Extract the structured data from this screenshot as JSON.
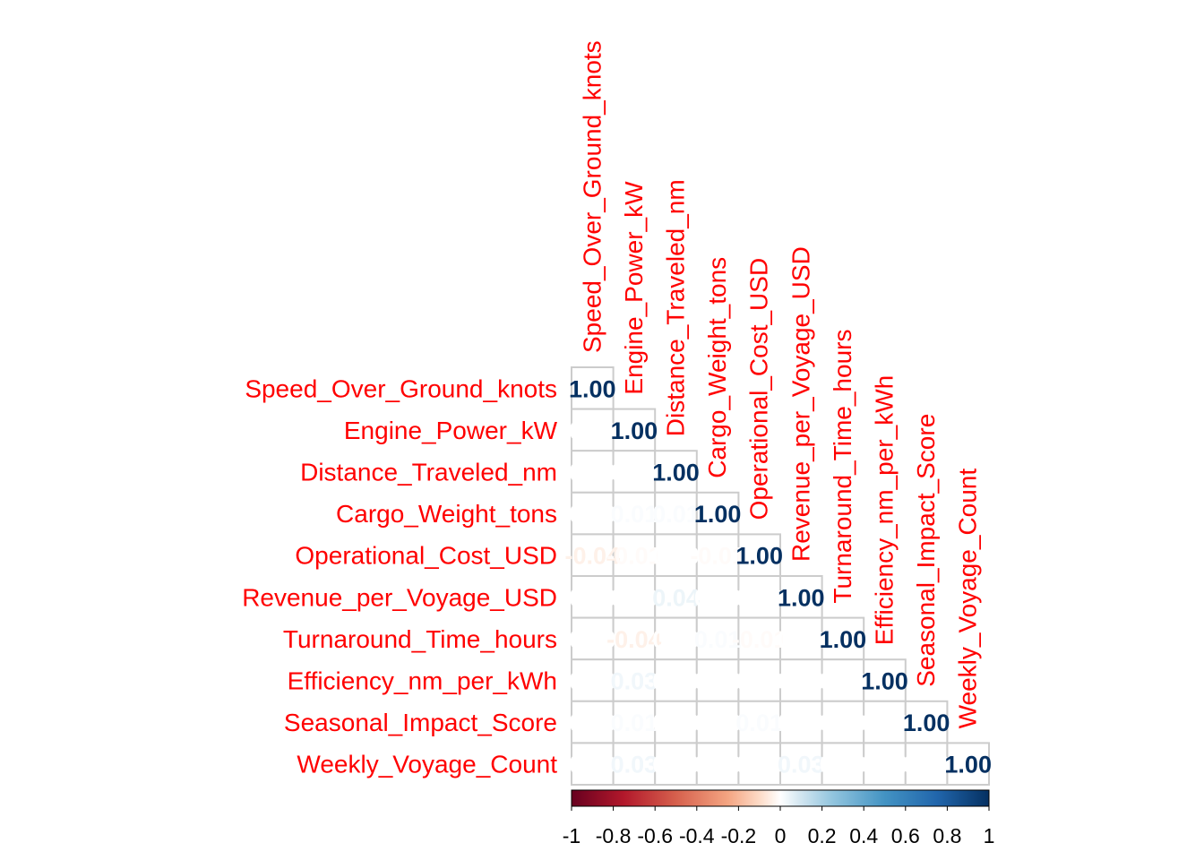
{
  "chart_data": {
    "type": "heatmap",
    "title": "",
    "layout": "lower-triangle",
    "variables": [
      "Speed_Over_Ground_knots",
      "Engine_Power_kW",
      "Distance_Traveled_nm",
      "Cargo_Weight_tons",
      "Operational_Cost_USD",
      "Revenue_per_Voyage_USD",
      "Turnaround_Time_hours",
      "Efficiency_nm_per_kWh",
      "Seasonal_Impact_Score",
      "Weekly_Voyage_Count"
    ],
    "matrix": [
      [
        1.0,
        0.0,
        0.0,
        0.0,
        -0.04,
        0.0,
        0.0,
        0.0,
        0.0,
        0.0
      ],
      [
        0.0,
        1.0,
        0.0,
        0.01,
        -0.01,
        0.0,
        -0.04,
        0.03,
        0.01,
        0.03
      ],
      [
        0.0,
        0.0,
        1.0,
        0.01,
        0.0,
        0.04,
        0.0,
        0.0,
        0.0,
        0.0
      ],
      [
        0.0,
        0.01,
        0.01,
        1.0,
        -0.01,
        0.0,
        0.01,
        0.0,
        0.0,
        0.0
      ],
      [
        -0.04,
        -0.01,
        0.0,
        -0.01,
        1.0,
        0.0,
        -0.01,
        0.0,
        0.01,
        0.0
      ],
      [
        0.0,
        0.0,
        0.04,
        0.0,
        0.0,
        1.0,
        0.0,
        0.0,
        0.0,
        0.03
      ],
      [
        0.0,
        -0.04,
        0.0,
        0.01,
        -0.01,
        0.0,
        1.0,
        0.0,
        0.0,
        0.0
      ],
      [
        0.0,
        0.03,
        0.0,
        0.0,
        0.0,
        0.0,
        0.0,
        1.0,
        0.0,
        0.0
      ],
      [
        0.0,
        0.01,
        0.0,
        0.0,
        0.01,
        0.0,
        0.0,
        0.0,
        1.0,
        0.0
      ],
      [
        0.0,
        0.03,
        0.0,
        0.0,
        0.0,
        0.03,
        0.0,
        0.0,
        0.0,
        1.0
      ]
    ],
    "value_format": "2 decimals",
    "color_scale": {
      "range": [
        -1,
        1
      ],
      "stops": [
        {
          "value": -1.0,
          "color": "#67001f"
        },
        {
          "value": -0.75,
          "color": "#b2182b"
        },
        {
          "value": -0.5,
          "color": "#d6604d"
        },
        {
          "value": -0.25,
          "color": "#f4a582"
        },
        {
          "value": -0.1,
          "color": "#fddbc7"
        },
        {
          "value": 0.0,
          "color": "#ffffff"
        },
        {
          "value": 0.1,
          "color": "#d1e5f0"
        },
        {
          "value": 0.25,
          "color": "#92c5de"
        },
        {
          "value": 0.5,
          "color": "#4393c3"
        },
        {
          "value": 0.75,
          "color": "#2166ac"
        },
        {
          "value": 1.0,
          "color": "#053061"
        }
      ],
      "ticks": [
        -1,
        -0.8,
        -0.6,
        -0.4,
        -0.2,
        0,
        0.2,
        0.4,
        0.6,
        0.8,
        1
      ],
      "tick_labels": [
        "-1",
        "-0.8",
        "-0.6",
        "-0.4",
        "-0.2",
        "0",
        "0.2",
        "0.4",
        "0.6",
        "0.8",
        "1"
      ]
    },
    "label_color": "#ff0000",
    "grid_color": "#cccccc",
    "legend": "bottom"
  }
}
